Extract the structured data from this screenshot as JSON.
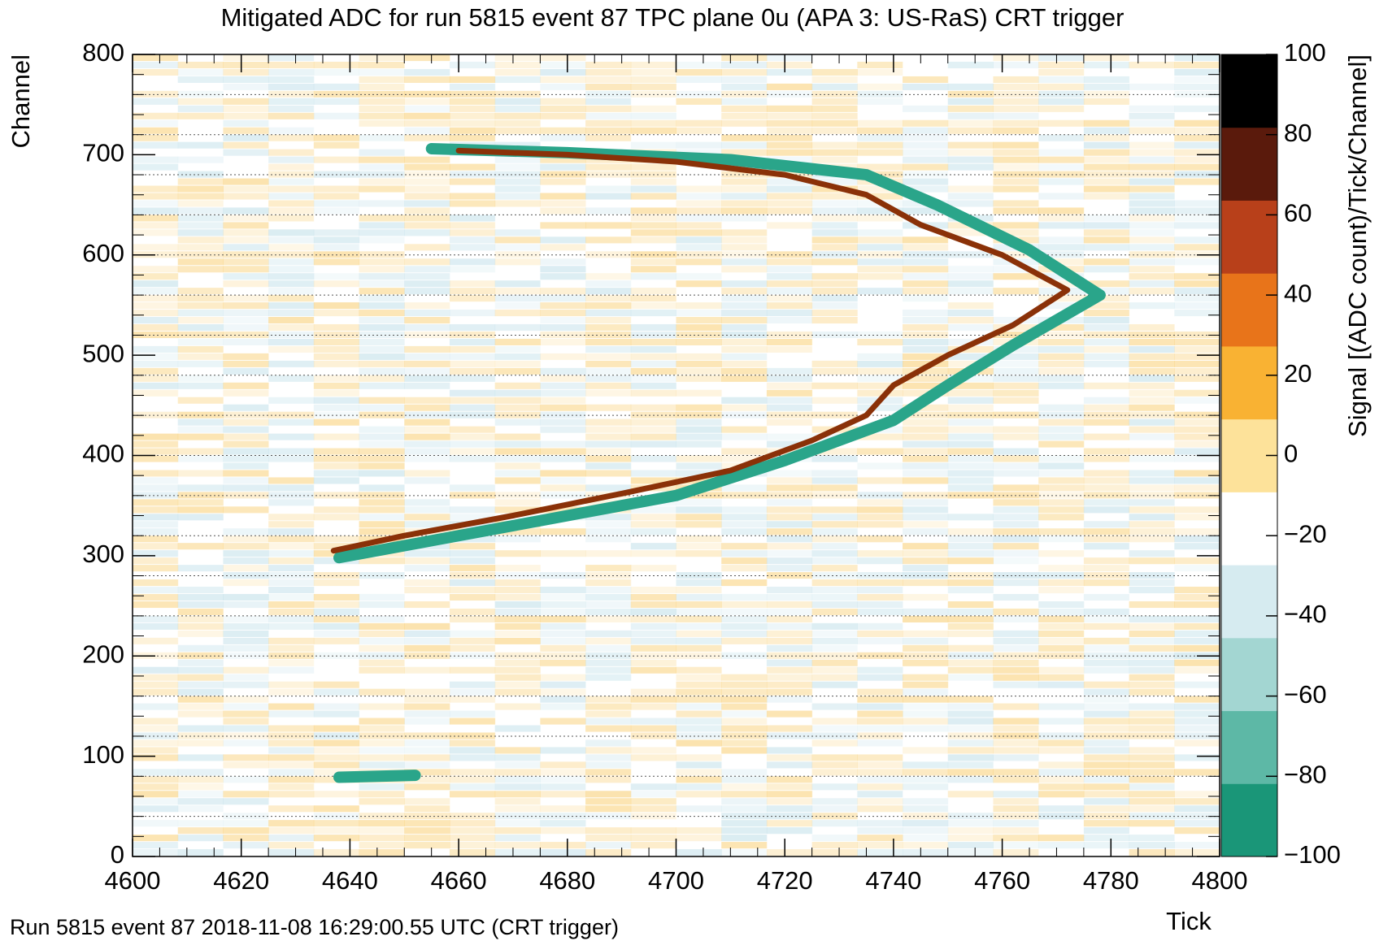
{
  "chart_data": {
    "type": "heatmap",
    "title": "Mitigated ADC for run 5815 event 87 TPC plane 0u (APA 3: US-RaS) CRT trigger",
    "xlabel": "Tick",
    "ylabel": "Channel",
    "colorbar_label": "Signal [(ADC count)/Tick/Channel]",
    "footer": "Run 5815 event 87 2018-11-08 16:29:00.55 UTC (CRT trigger)",
    "xlim": [
      4600,
      4800
    ],
    "xticks": [
      4600,
      4620,
      4640,
      4660,
      4680,
      4700,
      4720,
      4740,
      4760,
      4780,
      4800
    ],
    "ylim": [
      0,
      800
    ],
    "yticks": [
      0,
      100,
      200,
      300,
      400,
      500,
      600,
      700,
      800
    ],
    "zlim": [
      -100,
      100
    ],
    "zticks": [
      {
        "value": -100,
        "label": "−100"
      },
      {
        "value": -80,
        "label": "−80"
      },
      {
        "value": -60,
        "label": "−60"
      },
      {
        "value": -40,
        "label": "−40"
      },
      {
        "value": -20,
        "label": "−20"
      },
      0,
      20,
      40,
      60,
      80,
      100
    ],
    "colorscale": [
      "#1a9678",
      "#5db8a6",
      "#a3d6d2",
      "#d6ebf0",
      "#ffffff",
      "#fde29a",
      "#f9b233",
      "#e8741a",
      "#b8401a",
      "#5a1a0c",
      "#000000"
    ],
    "series": [
      {
        "color": "#2aa58a",
        "x": [
          4638,
          4655,
          4675,
          4700,
          4720,
          4740,
          4750,
          4762,
          4778,
          4765,
          4748,
          4735,
          4710,
          4680,
          4655,
          null,
          4638,
          4652
        ],
        "y": [
          298,
          315,
          335,
          360,
          395,
          435,
          470,
          510,
          560,
          605,
          650,
          680,
          695,
          702,
          706,
          null,
          79,
          81
        ]
      },
      {
        "color": "#8a3108",
        "x": [
          4637,
          4650,
          4670,
          4690,
          4710,
          4725,
          4735,
          4740,
          4750,
          4762,
          4772,
          4760,
          4745,
          4735,
          4720,
          4700,
          4680,
          4660
        ],
        "y": [
          305,
          320,
          340,
          362,
          385,
          415,
          440,
          470,
          500,
          530,
          565,
          600,
          630,
          660,
          680,
          693,
          700,
          704
        ]
      }
    ]
  }
}
